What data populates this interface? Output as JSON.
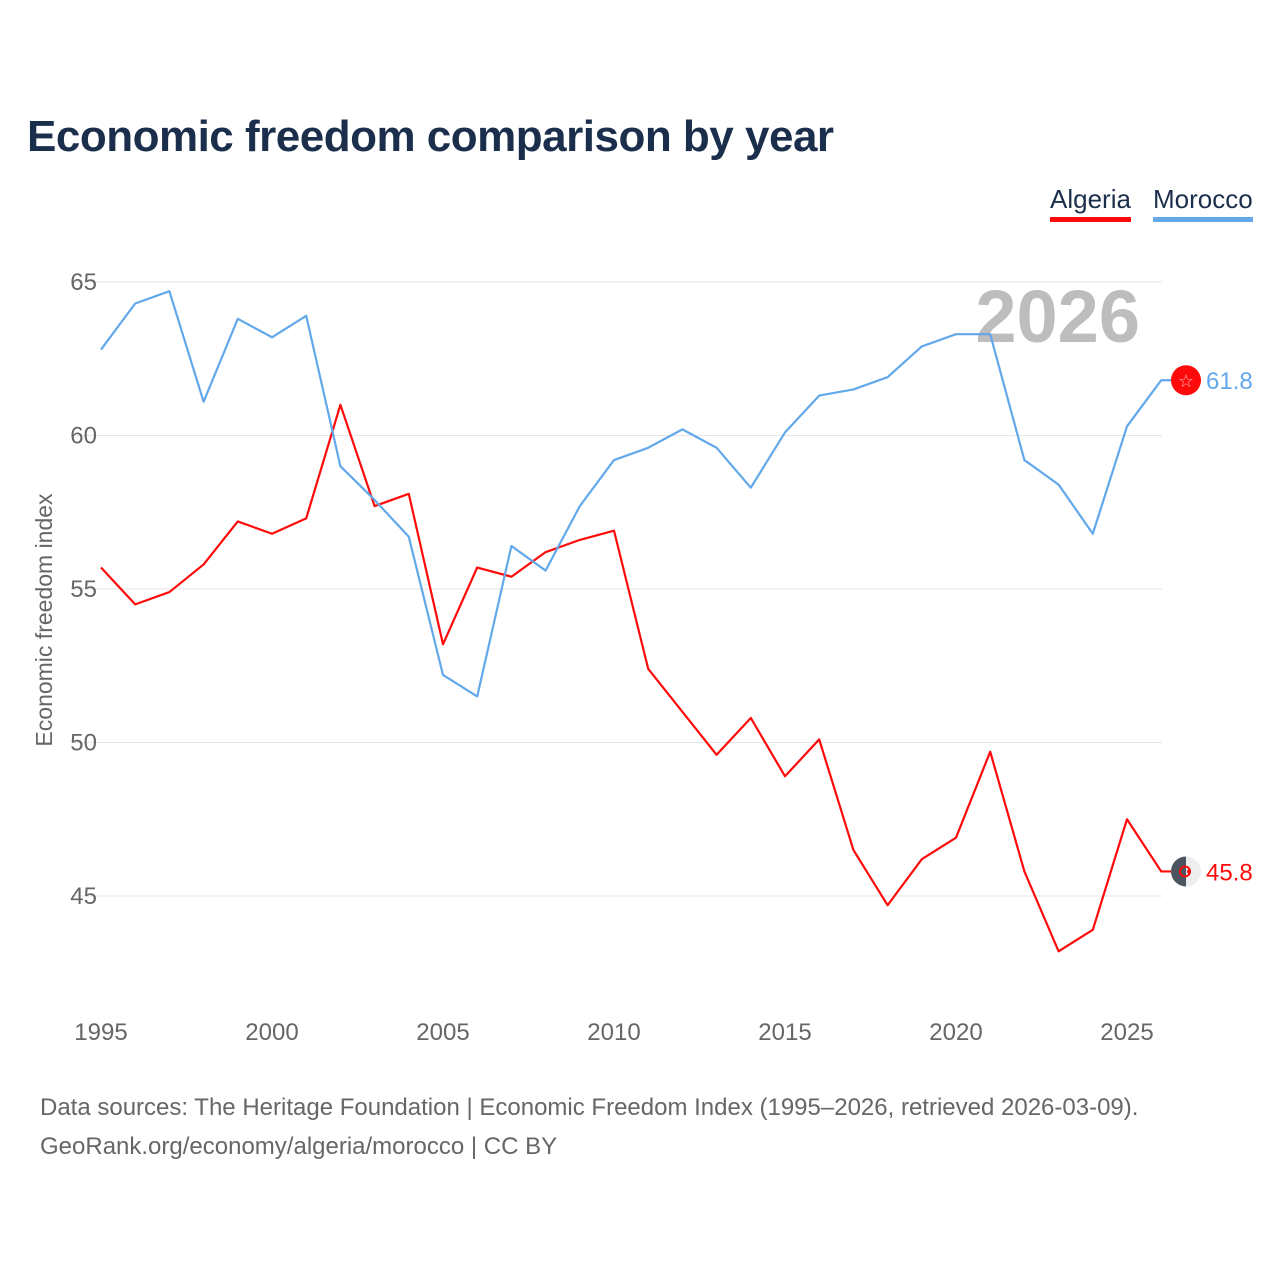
{
  "title": "Economic freedom comparison by year",
  "legend": [
    {
      "name": "Algeria",
      "color": "#ff0a0a"
    },
    {
      "name": "Morocco",
      "color": "#62a8ea"
    }
  ],
  "footer": {
    "line1": "Data sources: The Heritage Foundation | Economic Freedom Index (1995–2026, retrieved 2026-03-09).",
    "line2": "GeoRank.org/economy/algeria/morocco | CC BY"
  },
  "chart_data": {
    "type": "line",
    "title": "Economic freedom comparison by year",
    "ylabel": "Economic freedom index",
    "xlabel": "",
    "watermark_year": "2026",
    "xlim": [
      1995,
      2026
    ],
    "ylim": [
      41.5,
      66
    ],
    "xticks": [
      1995,
      2000,
      2005,
      2010,
      2015,
      2020,
      2025
    ],
    "yticks": [
      45,
      50,
      55,
      60,
      65
    ],
    "grid": true,
    "legend_position": "top-right",
    "x": [
      1995,
      1996,
      1997,
      1998,
      1999,
      2000,
      2001,
      2002,
      2003,
      2004,
      2005,
      2006,
      2007,
      2008,
      2009,
      2010,
      2011,
      2012,
      2013,
      2014,
      2015,
      2016,
      2017,
      2018,
      2019,
      2020,
      2021,
      2022,
      2023,
      2024,
      2025,
      2026
    ],
    "series": [
      {
        "name": "Algeria",
        "color": "#ff0a0a",
        "end_label": "45.8",
        "flag": "algeria-flag",
        "values": [
          55.7,
          54.5,
          54.9,
          55.8,
          57.2,
          56.8,
          57.3,
          61.0,
          57.7,
          58.1,
          53.2,
          55.7,
          55.4,
          56.2,
          56.6,
          56.9,
          52.4,
          51.0,
          49.6,
          50.8,
          48.9,
          50.1,
          46.5,
          44.7,
          46.2,
          46.9,
          49.7,
          45.8,
          43.2,
          43.9,
          47.5,
          45.8
        ]
      },
      {
        "name": "Morocco",
        "color": "#62a8ea",
        "end_label": "61.8",
        "flag": "morocco-flag",
        "values": [
          62.8,
          64.3,
          64.7,
          61.1,
          63.8,
          63.2,
          63.9,
          59.0,
          57.9,
          56.7,
          52.2,
          51.5,
          56.4,
          55.6,
          57.7,
          59.2,
          59.6,
          60.2,
          59.6,
          58.3,
          60.1,
          61.3,
          61.5,
          61.9,
          62.9,
          63.3,
          63.3,
          59.2,
          58.4,
          56.8,
          60.3,
          61.8
        ]
      }
    ]
  }
}
